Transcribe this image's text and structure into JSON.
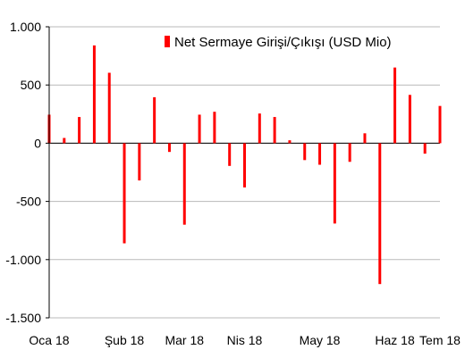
{
  "chart_data": {
    "type": "bar",
    "title": "",
    "xlabel": "",
    "ylabel": "",
    "ylim": [
      -1500,
      1000
    ],
    "yticks": [
      1000,
      500,
      0,
      -500,
      -1000,
      -1500
    ],
    "ytick_labels": [
      "1.000",
      "500",
      "0",
      "-500",
      "-1.000",
      "-1.500"
    ],
    "xtick_labels": [
      "Oca 18",
      "Şub 18",
      "Mar 18",
      "Nis 18",
      "May 18",
      "Haz 18",
      "Tem 18"
    ],
    "xtick_index": [
      0,
      5,
      9,
      13,
      18,
      23,
      27
    ],
    "grid": true,
    "legend_position": "top-right",
    "series": [
      {
        "name": "Net Sermaye Girişi/Çıkışı (USD Mio)",
        "color": "#ff0000",
        "values": [
          245,
          45,
          225,
          840,
          605,
          -860,
          -320,
          395,
          -75,
          -700,
          245,
          270,
          -195,
          -380,
          255,
          225,
          25,
          -145,
          -185,
          -690,
          -160,
          85,
          -1210,
          650,
          415,
          -90,
          320
        ]
      }
    ]
  }
}
